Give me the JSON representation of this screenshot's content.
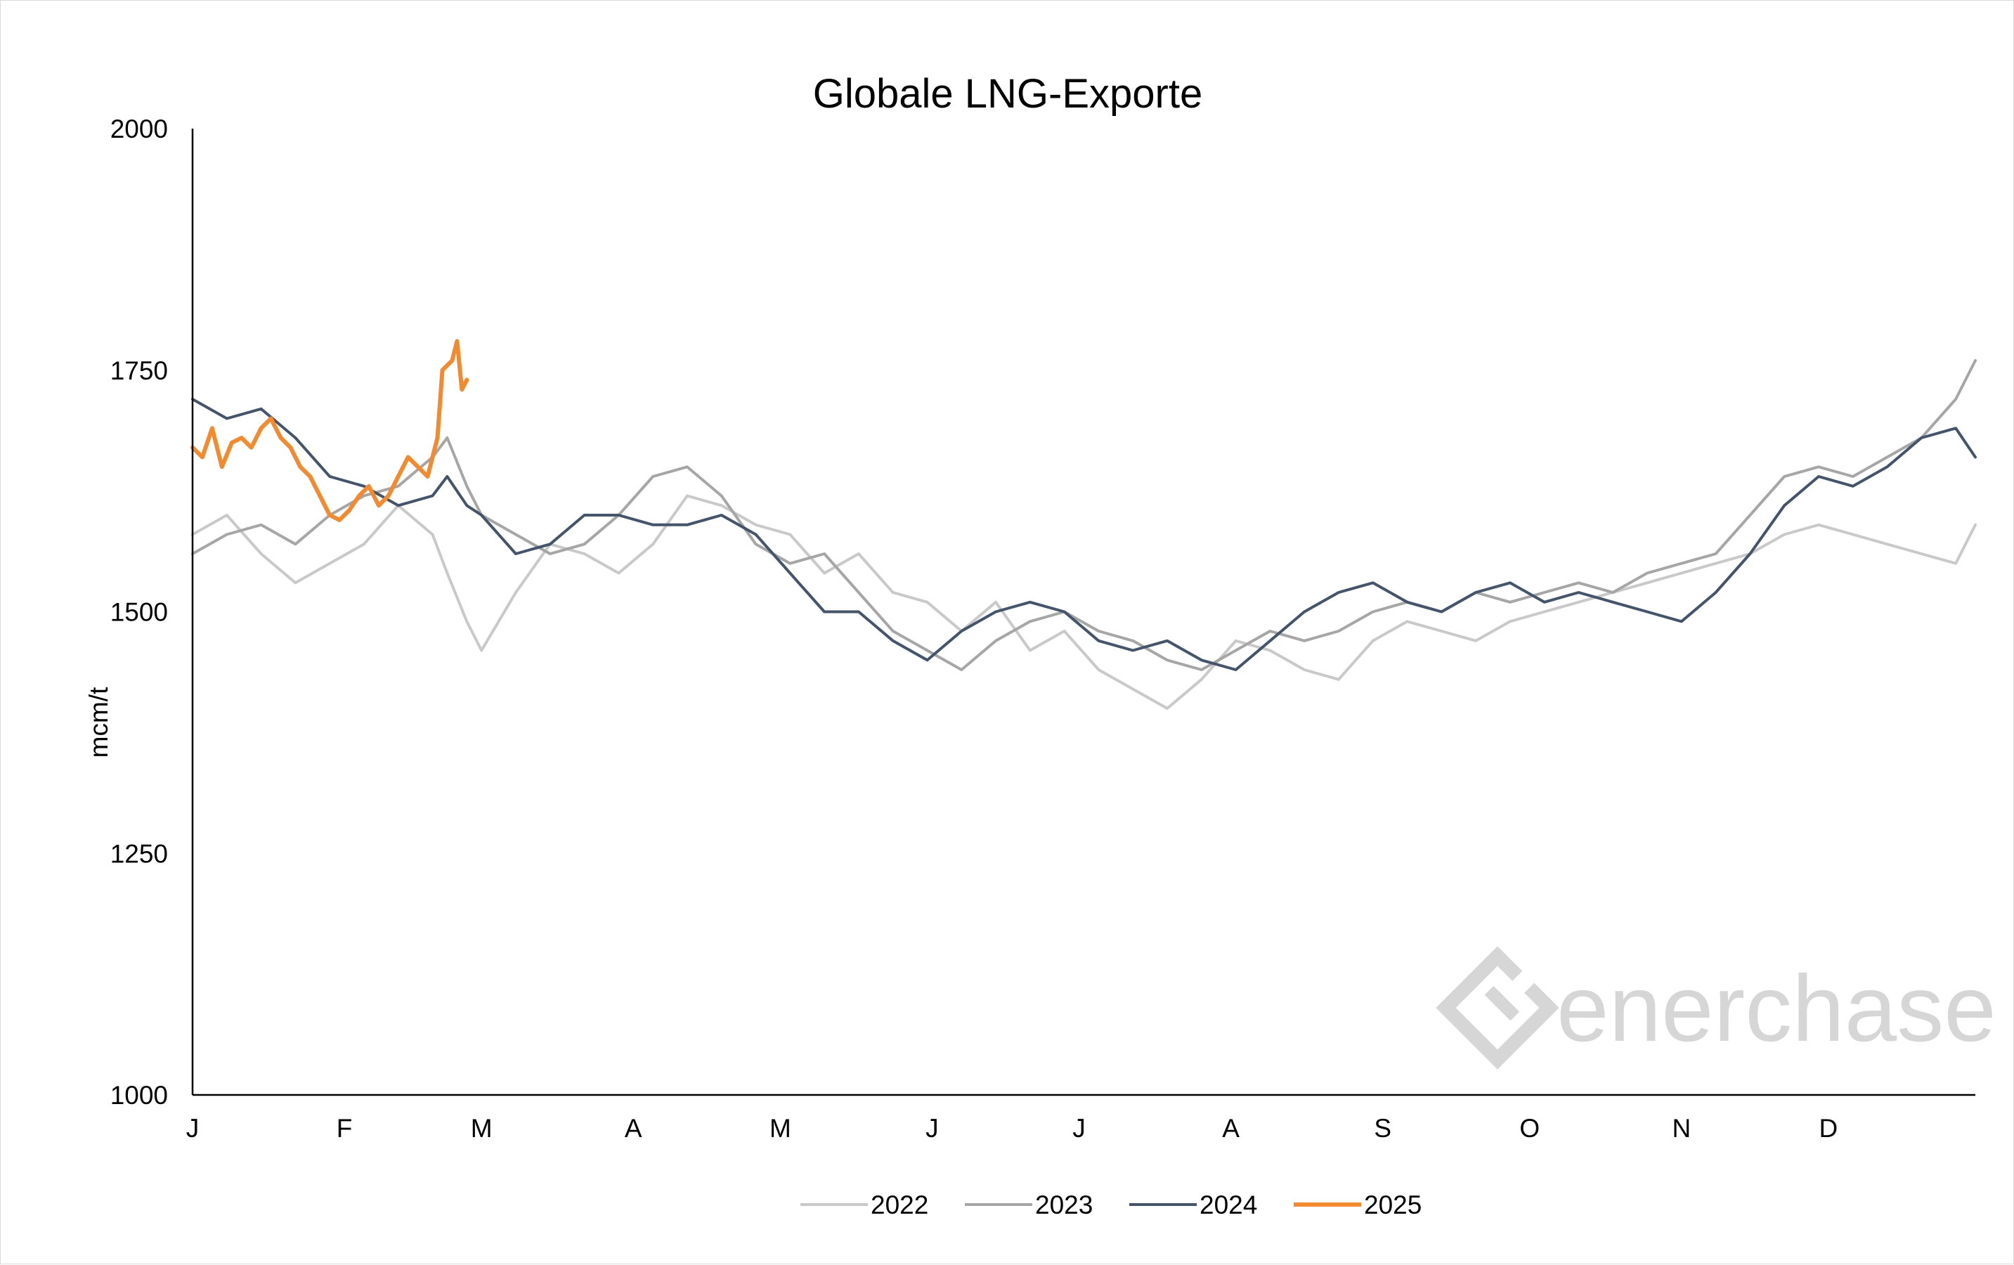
{
  "chart_data": {
    "type": "line",
    "title": "Globale LNG-Exporte",
    "xlabel": "",
    "ylabel": "mcm/t",
    "ylim": [
      1000,
      2000
    ],
    "yticks": [
      "1000",
      "1250",
      "1500",
      "1750",
      "2000"
    ],
    "x_domain": [
      1,
      365
    ],
    "xticks": [
      {
        "label": "J",
        "day": 1
      },
      {
        "label": "F",
        "day": 32
      },
      {
        "label": "M",
        "day": 60
      },
      {
        "label": "A",
        "day": 91
      },
      {
        "label": "M",
        "day": 121
      },
      {
        "label": "J",
        "day": 152
      },
      {
        "label": "J",
        "day": 182
      },
      {
        "label": "A",
        "day": 213
      },
      {
        "label": "S",
        "day": 244
      },
      {
        "label": "O",
        "day": 274
      },
      {
        "label": "N",
        "day": 305
      },
      {
        "label": "D",
        "day": 335
      }
    ],
    "grid": false,
    "legend_position": "bottom",
    "watermark": "enerchase",
    "series": [
      {
        "name": "2022",
        "color": "#c9c9c9",
        "x": [
          1,
          8,
          15,
          22,
          29,
          36,
          43,
          50,
          53,
          57,
          60,
          67,
          74,
          81,
          88,
          95,
          102,
          109,
          116,
          123,
          130,
          137,
          144,
          151,
          158,
          165,
          172,
          179,
          186,
          193,
          200,
          207,
          214,
          221,
          228,
          235,
          242,
          249,
          256,
          263,
          270,
          277,
          284,
          291,
          298,
          305,
          312,
          319,
          326,
          333,
          340,
          347,
          354,
          361,
          365
        ],
        "values": [
          1580,
          1600,
          1560,
          1530,
          1550,
          1570,
          1610,
          1580,
          1540,
          1490,
          1460,
          1520,
          1570,
          1560,
          1540,
          1570,
          1620,
          1610,
          1590,
          1580,
          1540,
          1560,
          1520,
          1510,
          1480,
          1510,
          1460,
          1480,
          1440,
          1420,
          1400,
          1430,
          1470,
          1460,
          1440,
          1430,
          1470,
          1490,
          1480,
          1470,
          1490,
          1500,
          1510,
          1520,
          1530,
          1540,
          1550,
          1560,
          1580,
          1590,
          1580,
          1570,
          1560,
          1550,
          1590
        ]
      },
      {
        "name": "2023",
        "color": "#a6a6a6",
        "x": [
          1,
          8,
          15,
          22,
          29,
          36,
          43,
          50,
          53,
          57,
          60,
          67,
          74,
          81,
          88,
          95,
          102,
          109,
          116,
          123,
          130,
          137,
          144,
          151,
          158,
          165,
          172,
          179,
          186,
          193,
          200,
          207,
          214,
          221,
          228,
          235,
          242,
          249,
          256,
          263,
          270,
          277,
          284,
          291,
          298,
          305,
          312,
          319,
          326,
          333,
          340,
          347,
          354,
          361,
          365
        ],
        "values": [
          1560,
          1580,
          1590,
          1570,
          1600,
          1620,
          1630,
          1660,
          1680,
          1630,
          1600,
          1580,
          1560,
          1570,
          1600,
          1640,
          1650,
          1620,
          1570,
          1550,
          1560,
          1520,
          1480,
          1460,
          1440,
          1470,
          1490,
          1500,
          1480,
          1470,
          1450,
          1440,
          1460,
          1480,
          1470,
          1480,
          1500,
          1510,
          1500,
          1520,
          1510,
          1520,
          1530,
          1520,
          1540,
          1550,
          1560,
          1600,
          1640,
          1650,
          1640,
          1660,
          1680,
          1720,
          1760
        ]
      },
      {
        "name": "2024",
        "color": "#44546a",
        "x": [
          1,
          8,
          15,
          22,
          29,
          36,
          43,
          50,
          53,
          57,
          60,
          67,
          74,
          81,
          88,
          95,
          102,
          109,
          116,
          123,
          130,
          137,
          144,
          151,
          158,
          165,
          172,
          179,
          186,
          193,
          200,
          207,
          214,
          221,
          228,
          235,
          242,
          249,
          256,
          263,
          270,
          277,
          284,
          291,
          298,
          305,
          312,
          319,
          326,
          333,
          340,
          347,
          354,
          361,
          365
        ],
        "values": [
          1720,
          1700,
          1710,
          1680,
          1640,
          1630,
          1610,
          1620,
          1640,
          1610,
          1600,
          1560,
          1570,
          1600,
          1600,
          1590,
          1590,
          1600,
          1580,
          1540,
          1500,
          1500,
          1470,
          1450,
          1480,
          1500,
          1510,
          1500,
          1470,
          1460,
          1470,
          1450,
          1440,
          1470,
          1500,
          1520,
          1530,
          1510,
          1500,
          1520,
          1530,
          1510,
          1520,
          1510,
          1500,
          1490,
          1520,
          1560,
          1610,
          1640,
          1630,
          1650,
          1680,
          1690,
          1660
        ]
      },
      {
        "name": "2025",
        "color": "#f28a30",
        "x": [
          1,
          3,
          5,
          7,
          9,
          11,
          13,
          15,
          17,
          19,
          21,
          23,
          25,
          27,
          29,
          31,
          33,
          35,
          37,
          39,
          41,
          43,
          45,
          47,
          49,
          51,
          52,
          53,
          54,
          55,
          56,
          57
        ],
        "values": [
          1670,
          1660,
          1690,
          1650,
          1675,
          1680,
          1670,
          1690,
          1700,
          1680,
          1670,
          1650,
          1640,
          1620,
          1600,
          1595,
          1605,
          1620,
          1630,
          1610,
          1620,
          1640,
          1660,
          1650,
          1640,
          1680,
          1750,
          1755,
          1760,
          1780,
          1730,
          1740
        ]
      }
    ]
  }
}
